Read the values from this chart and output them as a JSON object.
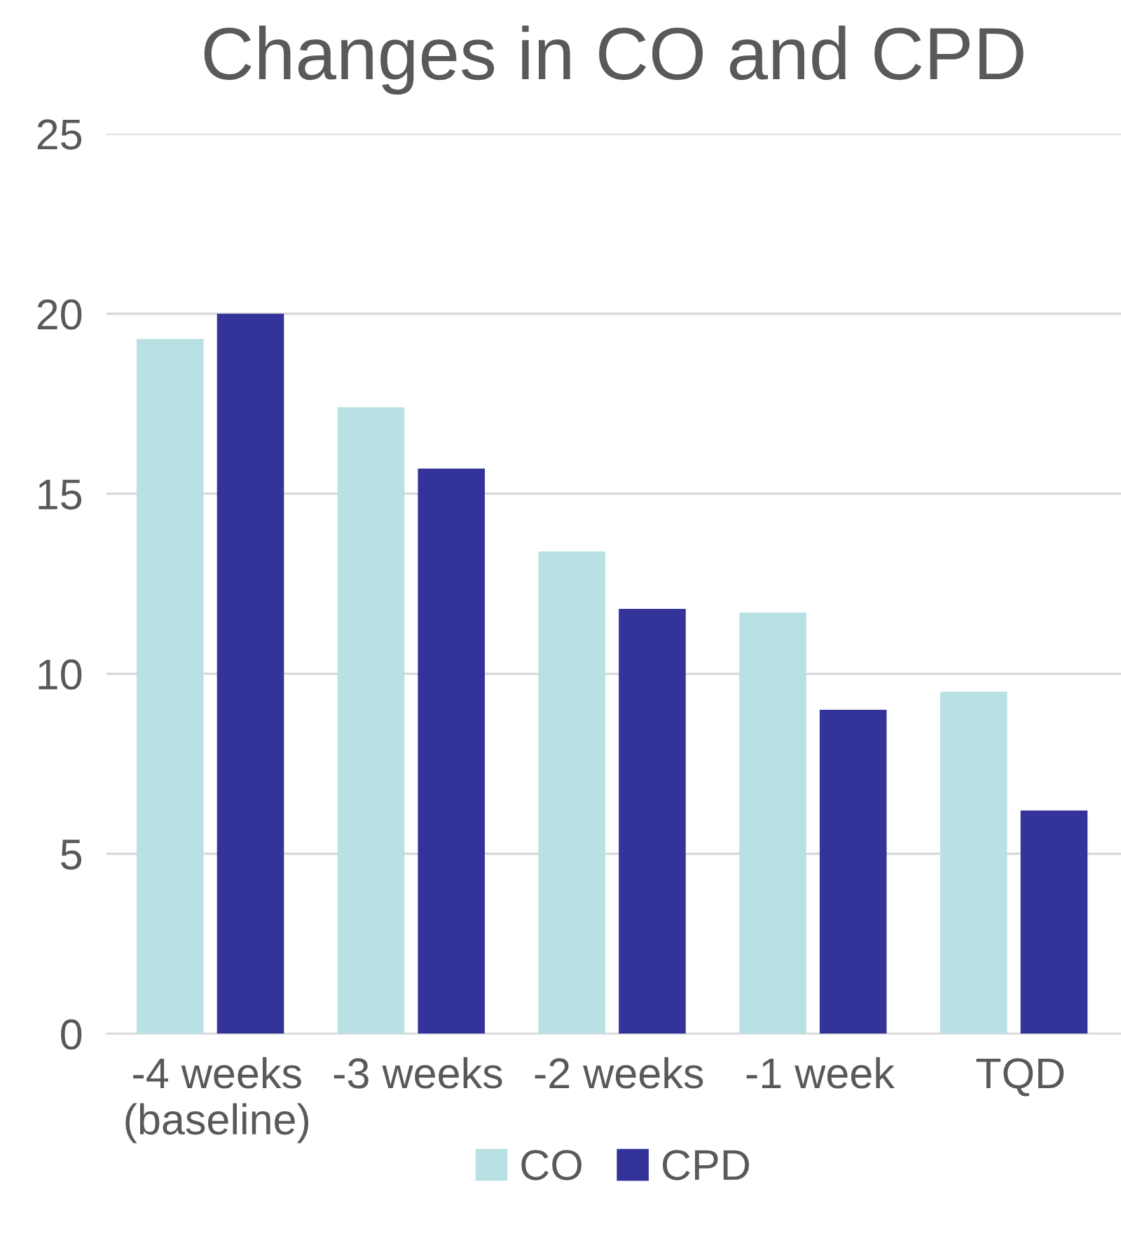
{
  "chart_data": {
    "type": "bar",
    "title": "Changes in CO and CPD",
    "categories": [
      "-4 weeks\n(baseline)",
      "-3 weeks",
      "-2 weeks",
      "-1 week",
      "TQD"
    ],
    "series": [
      {
        "name": "CO",
        "color": "#b9e0e3",
        "values": [
          19.3,
          17.4,
          13.4,
          11.7,
          9.5
        ]
      },
      {
        "name": "CPD",
        "color": "#343399",
        "values": [
          20.0,
          15.7,
          11.8,
          9.0,
          6.2
        ]
      }
    ],
    "ylim": [
      0,
      25
    ],
    "yticks": [
      0,
      5,
      10,
      15,
      20,
      25
    ],
    "grid": "y",
    "legend": "bottom"
  }
}
